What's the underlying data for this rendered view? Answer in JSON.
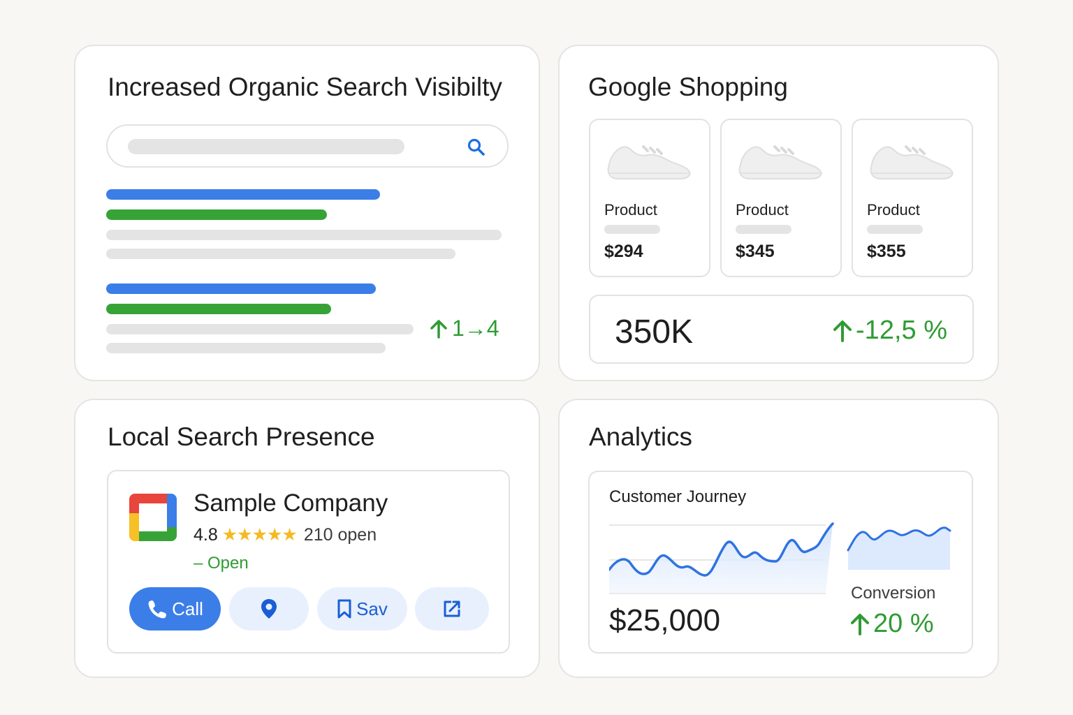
{
  "organic": {
    "title": "Increased Organic Search Visibilty",
    "rank_change": "1→4",
    "colors": {
      "blue": "#3b7ee8",
      "green": "#37a337",
      "positive": "#2f9b33"
    }
  },
  "shopping": {
    "title": "Google Shopping",
    "products": [
      {
        "name": "Product",
        "price": "$294"
      },
      {
        "name": "Product",
        "price": "$345"
      },
      {
        "name": "Product",
        "price": "$355"
      }
    ],
    "stat_value": "350K",
    "stat_change": "-12,5 %"
  },
  "local": {
    "title": "Local Search Presence",
    "business_name": "Sample Company",
    "rating": "4.8",
    "stars": "★★★★★",
    "reviews": "210 open",
    "status": "– Open",
    "actions": {
      "call": "Call",
      "save": "Sav"
    }
  },
  "analytics": {
    "title": "Analytics",
    "chart_title": "Customer Journey",
    "revenue": "$25,000",
    "conversion_label": "Conversion",
    "conversion_value": "20 %"
  },
  "icons": [
    "search-icon",
    "shoe-icon",
    "arrow-up-icon",
    "phone-icon",
    "map-pin-icon",
    "bookmark-icon",
    "open-external-icon",
    "business-logo"
  ]
}
